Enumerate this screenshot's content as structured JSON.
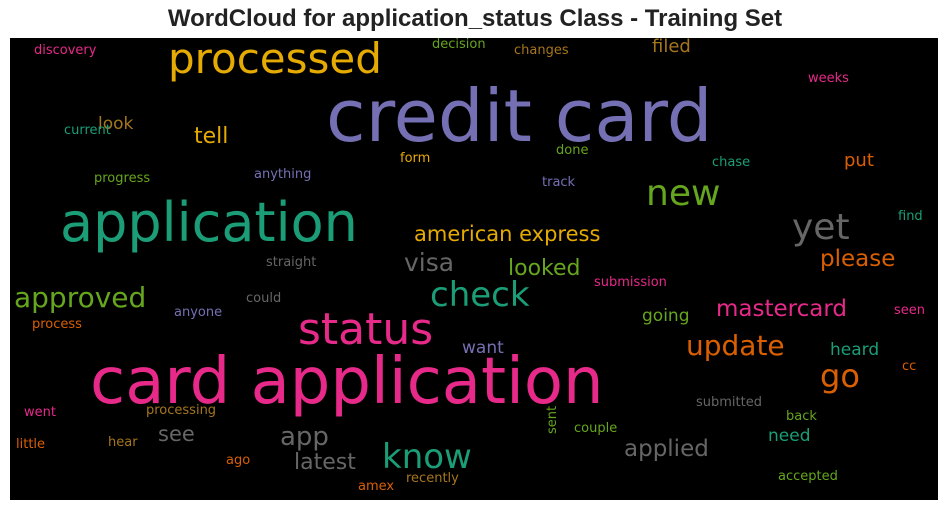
{
  "title": "WordCloud for application_status Class - Training Set",
  "words": [
    {
      "text": "credit card",
      "color": "#7570b3"
    },
    {
      "text": "card application",
      "color": "#e7298a"
    },
    {
      "text": "application",
      "color": "#1b9e77"
    },
    {
      "text": "processed",
      "color": "#e6ab02"
    },
    {
      "text": "status",
      "color": "#e7298a"
    },
    {
      "text": "check",
      "color": "#1b9e77"
    },
    {
      "text": "new",
      "color": "#66a61e"
    },
    {
      "text": "yet",
      "color": "#666666"
    },
    {
      "text": "approved",
      "color": "#66a61e"
    },
    {
      "text": "know",
      "color": "#1b9e77"
    },
    {
      "text": "american express",
      "color": "#e6ab02"
    },
    {
      "text": "update",
      "color": "#d95f02"
    },
    {
      "text": "go",
      "color": "#d95f02"
    },
    {
      "text": "visa",
      "color": "#666666"
    },
    {
      "text": "mastercard",
      "color": "#e7298a"
    },
    {
      "text": "app",
      "color": "#666666"
    },
    {
      "text": "latest",
      "color": "#666666"
    },
    {
      "text": "applied",
      "color": "#666666"
    },
    {
      "text": "please",
      "color": "#d95f02"
    },
    {
      "text": "looked",
      "color": "#66a61e"
    },
    {
      "text": "tell",
      "color": "#e6ab02"
    },
    {
      "text": "see",
      "color": "#666666"
    },
    {
      "text": "filed",
      "color": "#a6761d"
    },
    {
      "text": "look",
      "color": "#a6761d"
    },
    {
      "text": "put",
      "color": "#d95f02"
    },
    {
      "text": "heard",
      "color": "#1b9e77"
    },
    {
      "text": "need",
      "color": "#1b9e77"
    },
    {
      "text": "want",
      "color": "#7570b3"
    },
    {
      "text": "going",
      "color": "#66a61e"
    },
    {
      "text": "discovery",
      "color": "#e7298a"
    },
    {
      "text": "decision",
      "color": "#66a61e"
    },
    {
      "text": "changes",
      "color": "#a6761d"
    },
    {
      "text": "weeks",
      "color": "#e7298a"
    },
    {
      "text": "current",
      "color": "#1b9e77"
    },
    {
      "text": "progress",
      "color": "#66a61e"
    },
    {
      "text": "anything",
      "color": "#7570b3"
    },
    {
      "text": "form",
      "color": "#e6ab02"
    },
    {
      "text": "done",
      "color": "#66a61e"
    },
    {
      "text": "chase",
      "color": "#1b9e77"
    },
    {
      "text": "track",
      "color": "#7570b3"
    },
    {
      "text": "find",
      "color": "#1b9e77"
    },
    {
      "text": "straight",
      "color": "#666666"
    },
    {
      "text": "could",
      "color": "#666666"
    },
    {
      "text": "submission",
      "color": "#e7298a"
    },
    {
      "text": "seen",
      "color": "#e7298a"
    },
    {
      "text": "anyone",
      "color": "#7570b3"
    },
    {
      "text": "process",
      "color": "#d95f02"
    },
    {
      "text": "cc",
      "color": "#d95f02"
    },
    {
      "text": "submitted",
      "color": "#666666"
    },
    {
      "text": "back",
      "color": "#66a61e"
    },
    {
      "text": "processing",
      "color": "#a6761d"
    },
    {
      "text": "went",
      "color": "#e7298a"
    },
    {
      "text": "sent",
      "color": "#66a61e"
    },
    {
      "text": "couple",
      "color": "#66a61e"
    },
    {
      "text": "little",
      "color": "#d95f02"
    },
    {
      "text": "hear",
      "color": "#a6761d"
    },
    {
      "text": "ago",
      "color": "#d95f02"
    },
    {
      "text": "recently",
      "color": "#a6761d"
    },
    {
      "text": "accepted",
      "color": "#66a61e"
    },
    {
      "text": "amex",
      "color": "#d95f02"
    }
  ]
}
